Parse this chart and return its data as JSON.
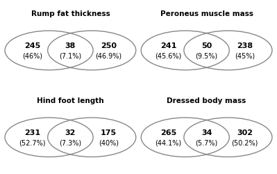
{
  "diagrams": [
    {
      "title": "Rump fat thickness",
      "left_n": "245",
      "left_pct": "(46%)",
      "mid_n": "38",
      "mid_pct": "(7.1%)",
      "right_n": "250",
      "right_pct": "(46.9%)"
    },
    {
      "title": "Peroneus muscle mass",
      "left_n": "241",
      "left_pct": "(45.6%)",
      "mid_n": "50",
      "mid_pct": "(9.5%)",
      "right_n": "238",
      "right_pct": "(45%)"
    },
    {
      "title": "Hind foot length",
      "left_n": "231",
      "left_pct": "(52.7%)",
      "mid_n": "32",
      "mid_pct": "(7.3%)",
      "right_n": "175",
      "right_pct": "(40%)"
    },
    {
      "title": "Dressed body mass",
      "left_n": "265",
      "left_pct": "(44.1%)",
      "mid_n": "34",
      "mid_pct": "(5.7%)",
      "right_n": "302",
      "right_pct": "(50.2%)"
    }
  ],
  "edge_color": "#888888",
  "face_color": "none",
  "linewidth": 1.0,
  "title_fontsize": 7.5,
  "num_fontsize": 8.0,
  "pct_fontsize": 7.0,
  "background_color": "#ffffff"
}
